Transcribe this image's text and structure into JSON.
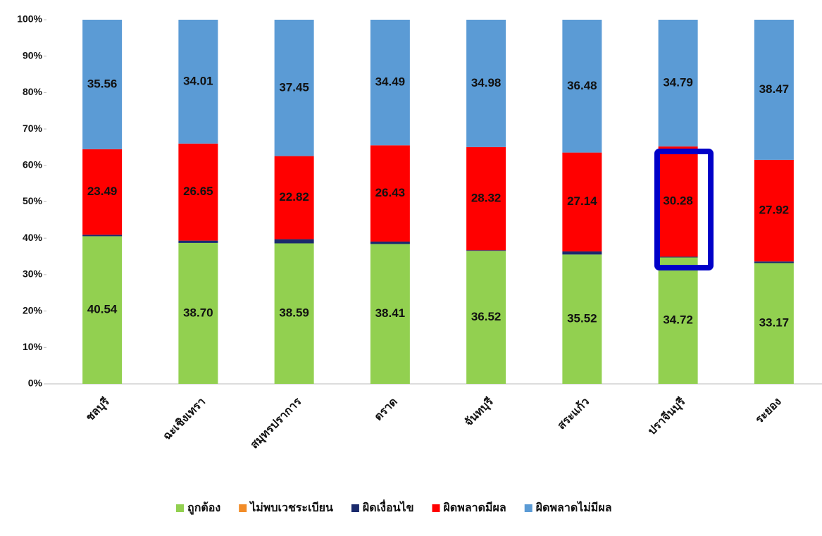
{
  "chart_data": {
    "type": "stacked-bar",
    "categories": [
      "ชลบุรี",
      "ฉะเชิงเทรา",
      "สมุทรปราการ",
      "ตราด",
      "จันทบุรี",
      "สระแก้ว",
      "ปราจีนบุรี",
      "ระยอง"
    ],
    "series": [
      {
        "name": "ถูกต้อง",
        "color": "#92d050",
        "values": [
          40.54,
          38.7,
          38.59,
          38.41,
          36.52,
          35.52,
          34.72,
          33.17
        ],
        "value_labels": [
          "40.54",
          "38.70",
          "38.59",
          "38.41",
          "36.52",
          "35.52",
          "34.72",
          "33.17"
        ]
      },
      {
        "name": "ไม่พบเวชระเบียน",
        "color": "#f28c28",
        "values": [
          0,
          0,
          0,
          0,
          0,
          0,
          0,
          0
        ]
      },
      {
        "name": "ผิดเงื่อนไข",
        "color": "#1a2a6c",
        "values": [
          0.41,
          0.64,
          1.14,
          0.67,
          0.18,
          0.86,
          0.21,
          0.44
        ]
      },
      {
        "name": "ผิดพลาดมีผล",
        "color": "#ff0000",
        "values": [
          23.49,
          26.65,
          22.82,
          26.43,
          28.32,
          27.14,
          30.28,
          27.92
        ],
        "value_labels": [
          "23.49",
          "26.65",
          "22.82",
          "26.43",
          "28.32",
          "27.14",
          "30.28",
          "27.92"
        ]
      },
      {
        "name": "ผิดพลาดไม่มีผล",
        "color": "#5b9bd5",
        "values": [
          35.56,
          34.01,
          37.45,
          34.49,
          34.98,
          36.48,
          34.79,
          38.47
        ],
        "value_labels": [
          "35.56",
          "34.01",
          "37.45",
          "34.49",
          "34.98",
          "36.48",
          "34.79",
          "38.47"
        ]
      }
    ],
    "ylim": [
      0,
      100
    ],
    "yticks": [
      {
        "value": 0,
        "label": "0%"
      },
      {
        "value": 10,
        "label": "10%"
      },
      {
        "value": 20,
        "label": "20%"
      },
      {
        "value": 30,
        "label": "30%"
      },
      {
        "value": 40,
        "label": "40%"
      },
      {
        "value": 50,
        "label": "50%"
      },
      {
        "value": 60,
        "label": "60%"
      },
      {
        "value": 70,
        "label": "70%"
      },
      {
        "value": 80,
        "label": "80%"
      },
      {
        "value": 90,
        "label": "90%"
      },
      {
        "value": 100,
        "label": "100%"
      }
    ],
    "legend": "bottom"
  }
}
